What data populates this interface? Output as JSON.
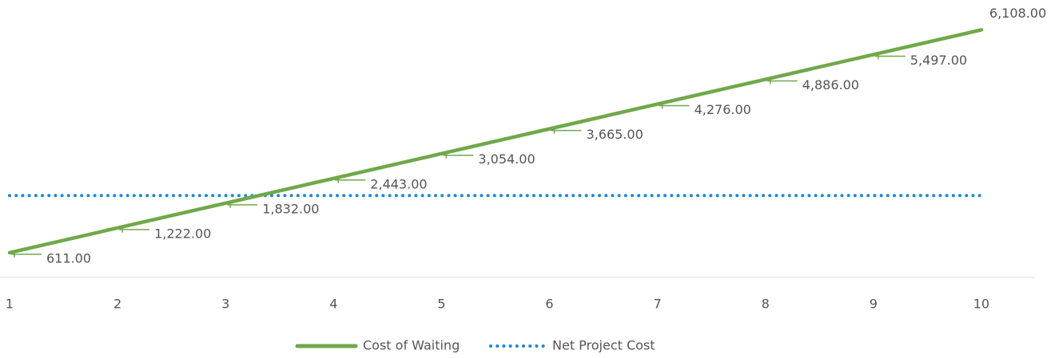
{
  "chart_data": {
    "type": "line",
    "categories": [
      "1",
      "2",
      "3",
      "4",
      "5",
      "6",
      "7",
      "8",
      "9",
      "10"
    ],
    "series": [
      {
        "name": "Cost of Waiting",
        "color": "#70a84a",
        "values": [
          611,
          1222,
          1832,
          2443,
          3054,
          3665,
          4276,
          4886,
          5497,
          6108
        ],
        "value_labels": [
          "611.00",
          "1,222.00",
          "1,832.00",
          "2,443.00",
          "3,054.00",
          "3,665.00",
          "4,276.00",
          "4,886.00",
          "5,497.00",
          "6,108.00"
        ]
      },
      {
        "name": "Net Project Cost",
        "color": "#1a86d8",
        "values": [
          2020,
          2020,
          2020,
          2020,
          2020,
          2020,
          2020,
          2020,
          2020,
          2020
        ]
      }
    ],
    "ylim": [
      0,
      6450
    ],
    "legend": "bottom"
  }
}
